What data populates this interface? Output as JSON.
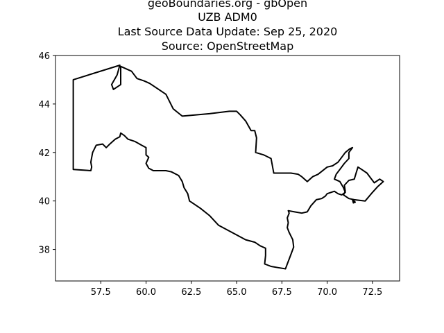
{
  "title_lines": [
    "geoBoundaries.org - gbOpen",
    "UZB ADM0",
    "Last Source Data Update: Sep 25, 2020",
    "Source: OpenStreetMap"
  ],
  "chart_data": {
    "type": "map",
    "xlim": [
      55.0,
      74.0
    ],
    "ylim": [
      36.7,
      46.0
    ],
    "grid": false,
    "x_ticks": [
      57.5,
      60.0,
      62.5,
      65.0,
      67.5,
      70.0,
      72.5
    ],
    "x_tick_labels": [
      "57.5",
      "60.0",
      "62.5",
      "65.0",
      "67.5",
      "70.0",
      "72.5"
    ],
    "y_ticks": [
      38,
      40,
      42,
      44,
      46
    ],
    "y_tick_labels": [
      "38",
      "40",
      "42",
      "44",
      "46"
    ],
    "series": [
      {
        "values": [
          [
            55.98,
            45.0
          ],
          [
            55.98,
            41.3
          ],
          [
            56.95,
            41.25
          ],
          [
            57.0,
            41.4
          ],
          [
            56.95,
            41.6
          ],
          [
            57.05,
            42.0
          ],
          [
            57.25,
            42.3
          ],
          [
            57.6,
            42.35
          ],
          [
            57.8,
            42.2
          ],
          [
            58.0,
            42.35
          ],
          [
            58.3,
            42.55
          ],
          [
            58.55,
            42.65
          ],
          [
            58.6,
            42.8
          ],
          [
            58.8,
            42.7
          ],
          [
            59.0,
            42.55
          ],
          [
            59.4,
            42.45
          ],
          [
            59.75,
            42.3
          ],
          [
            60.0,
            42.2
          ],
          [
            60.0,
            41.9
          ],
          [
            60.15,
            41.8
          ],
          [
            60.0,
            41.55
          ],
          [
            60.15,
            41.35
          ],
          [
            60.4,
            41.25
          ],
          [
            60.8,
            41.25
          ],
          [
            61.1,
            41.25
          ],
          [
            61.4,
            41.2
          ],
          [
            61.8,
            41.05
          ],
          [
            62.0,
            40.8
          ],
          [
            62.1,
            40.55
          ],
          [
            62.3,
            40.3
          ],
          [
            62.4,
            40.0
          ],
          [
            63.0,
            39.7
          ],
          [
            63.5,
            39.4
          ],
          [
            64.0,
            39.0
          ],
          [
            64.5,
            38.8
          ],
          [
            65.0,
            38.6
          ],
          [
            65.5,
            38.4
          ],
          [
            66.0,
            38.3
          ],
          [
            66.3,
            38.15
          ],
          [
            66.6,
            38.05
          ],
          [
            66.6,
            37.75
          ],
          [
            66.55,
            37.4
          ],
          [
            66.9,
            37.3
          ],
          [
            67.3,
            37.25
          ],
          [
            67.7,
            37.2
          ],
          [
            67.8,
            37.4
          ],
          [
            67.9,
            37.6
          ],
          [
            68.0,
            37.8
          ],
          [
            68.15,
            38.1
          ],
          [
            68.1,
            38.4
          ],
          [
            67.9,
            38.7
          ],
          [
            67.8,
            38.9
          ],
          [
            67.85,
            39.1
          ],
          [
            67.8,
            39.3
          ],
          [
            67.9,
            39.5
          ],
          [
            67.85,
            39.6
          ],
          [
            68.2,
            39.55
          ],
          [
            68.6,
            39.5
          ],
          [
            68.9,
            39.55
          ],
          [
            69.1,
            39.8
          ],
          [
            69.4,
            40.05
          ],
          [
            69.7,
            40.1
          ],
          [
            69.9,
            40.2
          ],
          [
            70.0,
            40.3
          ],
          [
            70.4,
            40.4
          ],
          [
            70.6,
            40.3
          ],
          [
            70.8,
            40.25
          ],
          [
            71.0,
            40.35
          ],
          [
            70.9,
            40.55
          ],
          [
            70.7,
            40.8
          ],
          [
            70.4,
            40.9
          ],
          [
            70.5,
            41.1
          ],
          [
            70.7,
            41.3
          ],
          [
            70.95,
            41.55
          ],
          [
            71.2,
            41.75
          ],
          [
            71.2,
            42.0
          ],
          [
            71.4,
            42.2
          ],
          [
            71.25,
            42.15
          ],
          [
            71.0,
            42.0
          ],
          [
            70.8,
            41.8
          ],
          [
            70.6,
            41.6
          ],
          [
            70.3,
            41.45
          ],
          [
            70.0,
            41.4
          ],
          [
            69.5,
            41.1
          ],
          [
            69.2,
            41.0
          ],
          [
            68.9,
            40.8
          ],
          [
            68.6,
            41.0
          ],
          [
            68.4,
            41.1
          ],
          [
            68.0,
            41.15
          ],
          [
            67.6,
            41.15
          ],
          [
            67.3,
            41.15
          ],
          [
            67.05,
            41.15
          ],
          [
            66.9,
            41.75
          ],
          [
            66.5,
            41.9
          ],
          [
            66.05,
            42.0
          ],
          [
            66.1,
            42.6
          ],
          [
            66.0,
            42.9
          ],
          [
            65.8,
            42.9
          ],
          [
            65.5,
            43.3
          ],
          [
            65.2,
            43.55
          ],
          [
            65.0,
            43.7
          ],
          [
            64.6,
            43.7
          ],
          [
            63.5,
            43.6
          ],
          [
            62.0,
            43.5
          ],
          [
            61.5,
            43.8
          ],
          [
            61.1,
            44.4
          ],
          [
            60.7,
            44.6
          ],
          [
            60.2,
            44.85
          ],
          [
            59.9,
            44.95
          ],
          [
            59.5,
            45.05
          ],
          [
            59.2,
            45.35
          ],
          [
            58.6,
            45.55
          ],
          [
            58.6,
            44.8
          ],
          [
            58.2,
            44.6
          ],
          [
            58.1,
            44.8
          ],
          [
            58.4,
            45.2
          ],
          [
            58.55,
            45.6
          ],
          [
            55.98,
            45.0
          ]
        ]
      },
      {
        "values": [
          [
            70.9,
            40.25
          ],
          [
            71.2,
            40.1
          ],
          [
            71.5,
            40.05
          ],
          [
            72.1,
            40.0
          ],
          [
            72.5,
            40.35
          ],
          [
            72.8,
            40.6
          ],
          [
            73.1,
            40.8
          ],
          [
            72.9,
            40.9
          ],
          [
            72.6,
            40.75
          ],
          [
            72.4,
            40.95
          ],
          [
            72.2,
            41.15
          ],
          [
            71.9,
            41.3
          ],
          [
            71.7,
            41.4
          ],
          [
            71.6,
            41.15
          ],
          [
            71.5,
            40.9
          ],
          [
            71.2,
            40.85
          ],
          [
            70.95,
            40.65
          ],
          [
            71.0,
            40.4
          ],
          [
            70.9,
            40.25
          ]
        ]
      },
      {
        "values": [
          [
            71.4,
            40.05
          ],
          [
            71.55,
            39.95
          ],
          [
            71.45,
            39.92
          ],
          [
            71.4,
            40.05
          ]
        ]
      }
    ]
  }
}
